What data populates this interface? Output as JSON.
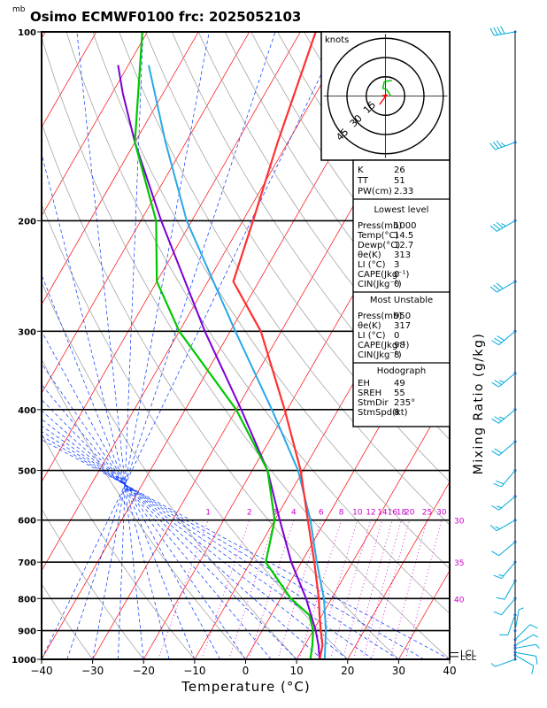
{
  "mb_unit": "mb",
  "header": "Osimo  ECMWF0100  frc: 2025052103",
  "chart_data": {
    "type": "skewt-logp",
    "pressure_ticks": [
      100,
      200,
      300,
      400,
      500,
      600,
      700,
      800,
      900,
      1000
    ],
    "temperature_ticks": [
      -40,
      -30,
      -20,
      -10,
      0,
      10,
      20,
      30,
      40
    ],
    "xlim": [
      -40,
      40
    ],
    "ylim": [
      1000,
      100
    ],
    "xlabel": "Temperature (°C)",
    "right_label": "Mixing Ratio (g/kg)",
    "mixing_ratio_labels": [
      "1",
      "2",
      "3",
      "4",
      "6",
      "8",
      "10",
      "12",
      "14",
      "16",
      "18",
      "20",
      "25",
      "30"
    ],
    "mixing_ratio_values": [
      1,
      2,
      3,
      4,
      6,
      8,
      10,
      12,
      14,
      16,
      18,
      20,
      25,
      30
    ],
    "adiabat_labels": [
      "30",
      "35",
      "40"
    ],
    "lcl_labels": [
      "LCL",
      "LCL"
    ],
    "temperature_profile": [
      {
        "p": 1000,
        "t": 14.5
      },
      {
        "p": 950,
        "t": 13.5
      },
      {
        "p": 900,
        "t": 11.5
      },
      {
        "p": 850,
        "t": 9.5
      },
      {
        "p": 800,
        "t": 7.5
      },
      {
        "p": 700,
        "t": 2.5
      },
      {
        "p": 600,
        "t": -3.5
      },
      {
        "p": 500,
        "t": -10.5
      },
      {
        "p": 400,
        "t": -20.5
      },
      {
        "p": 300,
        "t": -34
      },
      {
        "p": 250,
        "t": -45
      },
      {
        "p": 200,
        "t": -48
      },
      {
        "p": 150,
        "t": -52
      },
      {
        "p": 100,
        "t": -57
      }
    ],
    "dewpoint_profile": [
      {
        "p": 1000,
        "t": 12.7
      },
      {
        "p": 950,
        "t": 11.5
      },
      {
        "p": 900,
        "t": 10
      },
      {
        "p": 850,
        "t": 7.5
      },
      {
        "p": 800,
        "t": 2
      },
      {
        "p": 700,
        "t": -7
      },
      {
        "p": 600,
        "t": -10
      },
      {
        "p": 500,
        "t": -17
      },
      {
        "p": 400,
        "t": -30
      },
      {
        "p": 300,
        "t": -50
      },
      {
        "p": 250,
        "t": -60
      },
      {
        "p": 200,
        "t": -67
      },
      {
        "p": 150,
        "t": -80
      },
      {
        "p": 100,
        "t": -91
      }
    ],
    "parcel_profile": [
      {
        "p": 1000,
        "t": 14.5
      },
      {
        "p": 950,
        "t": 12.7
      },
      {
        "p": 900,
        "t": 10.5
      },
      {
        "p": 800,
        "t": 5
      },
      {
        "p": 700,
        "t": -2
      },
      {
        "p": 600,
        "t": -9
      },
      {
        "p": 500,
        "t": -17
      },
      {
        "p": 400,
        "t": -29
      },
      {
        "p": 300,
        "t": -45
      },
      {
        "p": 200,
        "t": -66
      },
      {
        "p": 150,
        "t": -80
      },
      {
        "p": 125,
        "t": -88
      },
      {
        "p": 113,
        "t": -92
      }
    ],
    "virtual_profile": [
      {
        "p": 1000,
        "t": 15.5
      },
      {
        "p": 900,
        "t": 12.5
      },
      {
        "p": 800,
        "t": 8.5
      },
      {
        "p": 700,
        "t": 3
      },
      {
        "p": 600,
        "t": -3
      },
      {
        "p": 500,
        "t": -11
      },
      {
        "p": 400,
        "t": -23
      },
      {
        "p": 300,
        "t": -39
      },
      {
        "p": 200,
        "t": -61
      },
      {
        "p": 150,
        "t": -74
      },
      {
        "p": 113,
        "t": -86
      }
    ],
    "hodograph": {
      "unit": "knots",
      "ring_labels": [
        "15",
        "30",
        "45"
      ],
      "ring_values": [
        15,
        30,
        45
      ],
      "trace_points": [
        [
          4,
          0
        ],
        [
          3,
          2
        ],
        [
          1,
          5
        ],
        [
          -2,
          6
        ],
        [
          -1,
          11
        ],
        [
          3,
          12
        ],
        [
          5,
          12
        ]
      ],
      "storm_motion": [
        -4.6,
        6.6
      ]
    },
    "indices": {
      "general": [
        {
          "label": "K",
          "value": "26"
        },
        {
          "label": "TT",
          "value": "51"
        },
        {
          "label": "PW(cm)",
          "value": "2.33"
        }
      ],
      "lowest_level": {
        "title": "Lowest level",
        "rows": [
          {
            "label": "Press(mb)",
            "value": "1000"
          },
          {
            "label": "Temp(°C)",
            "value": "14.5"
          },
          {
            "label": "Dewp(°C)",
            "value": "12.7"
          },
          {
            "label": "θe(K)",
            "value": "313"
          },
          {
            "label": "LI (°C)",
            "value": "3"
          },
          {
            "label": "CAPE(Jkg⁻¹)",
            "value": "0"
          },
          {
            "label": "CIN(Jkg⁻¹)",
            "value": "0"
          }
        ]
      },
      "most_unstable": {
        "title": "Most Unstable",
        "rows": [
          {
            "label": "Press(mb)",
            "value": "950"
          },
          {
            "label": "θe(K)",
            "value": "317"
          },
          {
            "label": "LI (°C)",
            "value": "0"
          },
          {
            "label": "CAPE(Jkg⁻¹)",
            "value": "98"
          },
          {
            "label": "CIN(Jkg⁻¹)",
            "value": "8"
          }
        ]
      },
      "hodograph_params": {
        "title": "Hodograph",
        "rows": [
          {
            "label": "EH",
            "value": "49"
          },
          {
            "label": "SREH",
            "value": "55"
          },
          {
            "label": "StmDir",
            "value": "235°"
          },
          {
            "label": "StmSpd(kt)",
            "value": "8"
          }
        ]
      }
    },
    "wind_barbs": [
      {
        "p": 1000,
        "dir": 250,
        "spd": 5
      },
      {
        "p": 985,
        "dir": 120,
        "spd": 10
      },
      {
        "p": 975,
        "dir": 100,
        "spd": 12
      },
      {
        "p": 960,
        "dir": 80,
        "spd": 8
      },
      {
        "p": 950,
        "dir": 60,
        "spd": 8
      },
      {
        "p": 930,
        "dir": 45,
        "spd": 10
      },
      {
        "p": 900,
        "dir": 10,
        "spd": 5
      },
      {
        "p": 850,
        "dir": 200,
        "spd": 10
      },
      {
        "p": 800,
        "dir": 220,
        "spd": 10
      },
      {
        "p": 750,
        "dir": 210,
        "spd": 12
      },
      {
        "p": 700,
        "dir": 220,
        "spd": 15
      },
      {
        "p": 650,
        "dir": 230,
        "spd": 12
      },
      {
        "p": 600,
        "dir": 240,
        "spd": 15
      },
      {
        "p": 550,
        "dir": 230,
        "spd": 15
      },
      {
        "p": 500,
        "dir": 220,
        "spd": 20
      },
      {
        "p": 450,
        "dir": 230,
        "spd": 20
      },
      {
        "p": 400,
        "dir": 230,
        "spd": 25
      },
      {
        "p": 350,
        "dir": 230,
        "spd": 25
      },
      {
        "p": 300,
        "dir": 230,
        "spd": 30
      },
      {
        "p": 250,
        "dir": 240,
        "spd": 30
      },
      {
        "p": 200,
        "dir": 240,
        "spd": 35
      },
      {
        "p": 150,
        "dir": 250,
        "spd": 35
      },
      {
        "p": 100,
        "dir": 260,
        "spd": 40
      }
    ],
    "colors": {
      "temperature": "#ff3030",
      "dewpoint": "#00c800",
      "parcel": "#7b00d6",
      "virtual": "#28a8e8",
      "isotherm": "#ff0000",
      "dry_adiabat": "#999999",
      "moist_adiabat": "#0033ff",
      "mixing_ratio": "#cc00cc",
      "wind": "#00aadd"
    }
  }
}
